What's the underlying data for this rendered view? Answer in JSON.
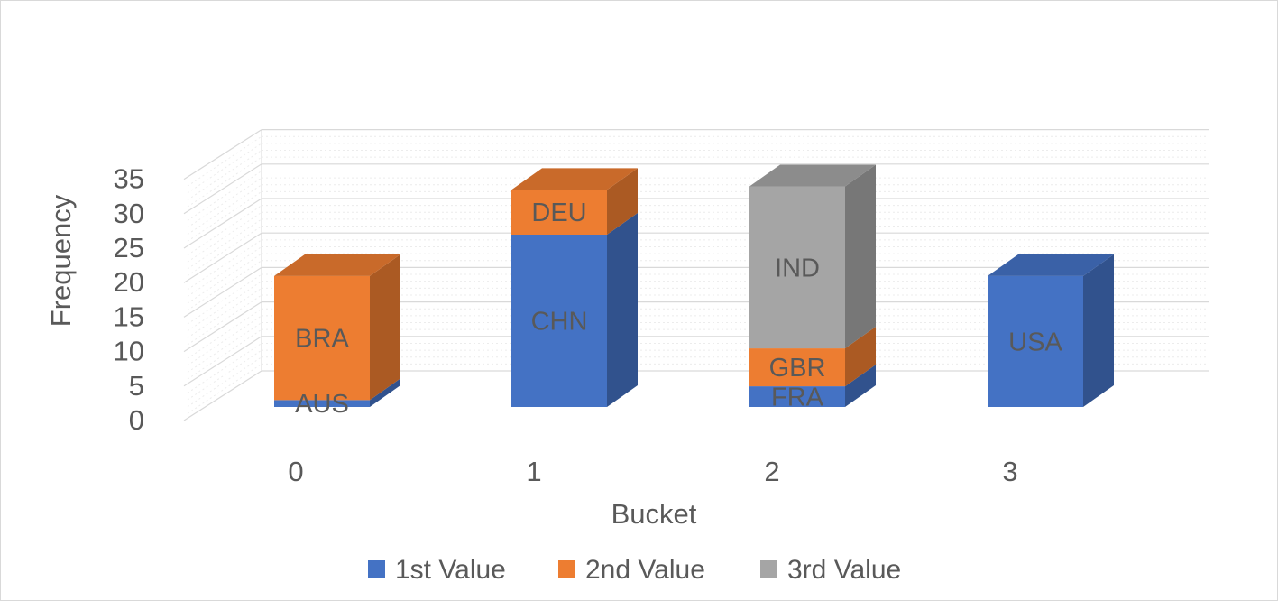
{
  "chart_data": {
    "type": "bar",
    "stacked": true,
    "three_d": true,
    "xlabel": "Bucket",
    "ylabel": "Frequency",
    "ylim": [
      0,
      35
    ],
    "y_ticks": [
      0,
      5,
      10,
      15,
      20,
      25,
      30,
      35
    ],
    "categories": [
      "0",
      "1",
      "2",
      "3"
    ],
    "grid": true,
    "legend_position": "bottom",
    "series": [
      {
        "name": "1st Value",
        "color": "#4472C4",
        "values": [
          1,
          25,
          3,
          19
        ]
      },
      {
        "name": "2nd Value",
        "color": "#ED7D31",
        "values": [
          18,
          6.5,
          5.5,
          0
        ]
      },
      {
        "name": "3rd Value",
        "color": "#A5A5A5",
        "values": [
          0,
          0,
          23.5,
          0
        ]
      }
    ],
    "segment_labels": [
      [
        "AUS",
        "CHN",
        "FRA",
        "USA"
      ],
      [
        "BRA",
        "DEU",
        "GBR",
        ""
      ],
      [
        "",
        "",
        "IND",
        ""
      ]
    ]
  }
}
